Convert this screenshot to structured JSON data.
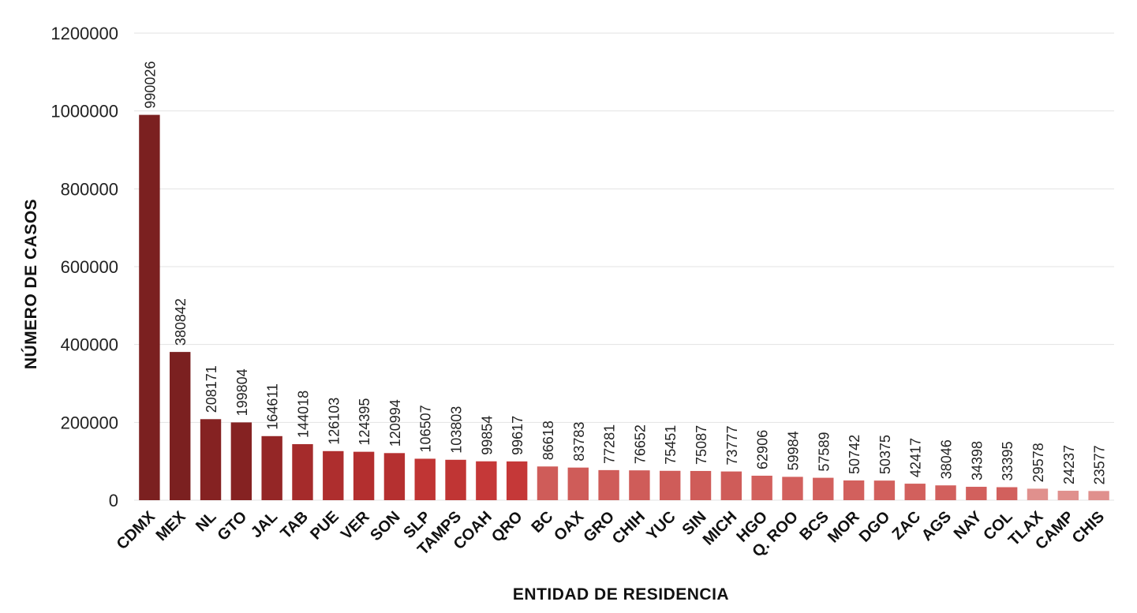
{
  "chart_data": {
    "type": "bar",
    "xlabel": "ENTIDAD DE RESIDENCIA",
    "ylabel": "NÚMERO DE CASOS",
    "ylim": [
      0,
      1200000
    ],
    "yticks": [
      0,
      200000,
      400000,
      600000,
      800000,
      1000000,
      1200000
    ],
    "ytick_labels": [
      "0",
      "200000",
      "400000",
      "600000",
      "800000",
      "1000000",
      "1200000"
    ],
    "grid": true,
    "categories": [
      "CDMX",
      "MEX",
      "NL",
      "GTO",
      "JAL",
      "TAB",
      "PUE",
      "VER",
      "SON",
      "SLP",
      "TAMPS",
      "COAH",
      "QRO",
      "BC",
      "OAX",
      "GRO",
      "CHIH",
      "YUC",
      "SIN",
      "MICH",
      "HGO",
      "Q. ROO",
      "BCS",
      "MOR",
      "DGO",
      "ZAC",
      "AGS",
      "NAY",
      "COL",
      "TLAX",
      "CAMP",
      "CHIS"
    ],
    "values": [
      990026,
      380842,
      208171,
      199804,
      164611,
      144018,
      126103,
      124395,
      120994,
      106507,
      103803,
      99854,
      99617,
      86618,
      83783,
      77281,
      76652,
      75451,
      75087,
      73777,
      62906,
      59984,
      57589,
      50742,
      50375,
      42417,
      38046,
      34398,
      33395,
      29578,
      24237,
      23577
    ],
    "data_labels": [
      "990026",
      "380842",
      "208171",
      "199804",
      "164611",
      "144018",
      "126103",
      "124395",
      "120994",
      "106507",
      "103803",
      "99854",
      "99617",
      "86618",
      "83783",
      "77281",
      "76652",
      "75451",
      "75087",
      "73777",
      "62906",
      "59984",
      "57589",
      "50742",
      "50375",
      "42417",
      "38046",
      "34398",
      "33395",
      "29578",
      "24237",
      "23577"
    ],
    "bar_colors": [
      "#7b2020",
      "#7b2020",
      "#852222",
      "#852222",
      "#942626",
      "#a52b2b",
      "#ae2e2e",
      "#b32f2f",
      "#b53030",
      "#c03534",
      "#c03534",
      "#c53838",
      "#c53838",
      "#cf5c59",
      "#cf5c59",
      "#cf5c59",
      "#cf5c59",
      "#cf5c59",
      "#cf5c59",
      "#cf5c59",
      "#d2605d",
      "#d2605d",
      "#d2605d",
      "#d2605d",
      "#d2605d",
      "#d2605d",
      "#d2605d",
      "#d2605d",
      "#d2605d",
      "#e0908d",
      "#e0908d",
      "#e0908d"
    ]
  }
}
